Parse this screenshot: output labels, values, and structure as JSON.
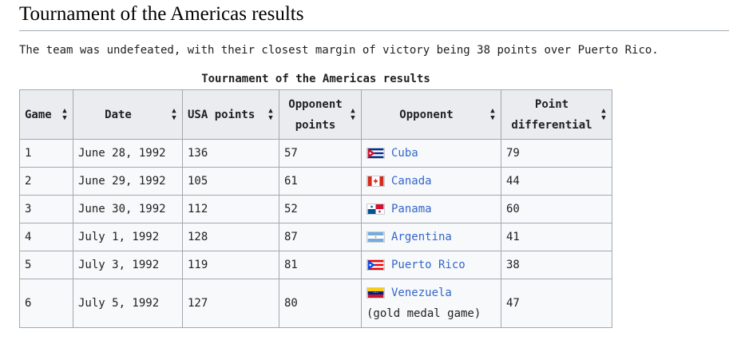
{
  "heading": "Tournament of the Americas results",
  "intro": "The team was undefeated, with their closest margin of victory being 38 points over Puerto Rico.",
  "table": {
    "caption": "Tournament of the Americas results",
    "headers": {
      "game": "Game",
      "date": "Date",
      "usa_points": "USA points",
      "opp_points_1": "Opponent",
      "opp_points_2": "points",
      "opponent": "Opponent",
      "diff_1": "Point",
      "diff_2": "differential"
    },
    "rows": [
      {
        "game": "1",
        "date": "June 28, 1992",
        "usa": "136",
        "opp_pts": "57",
        "flag": "cuba-flag",
        "opponent": "Cuba",
        "note": "",
        "diff": "79"
      },
      {
        "game": "2",
        "date": "June 29, 1992",
        "usa": "105",
        "opp_pts": "61",
        "flag": "canada-flag",
        "opponent": "Canada",
        "note": "",
        "diff": "44"
      },
      {
        "game": "3",
        "date": "June 30, 1992",
        "usa": "112",
        "opp_pts": "52",
        "flag": "panama-flag",
        "opponent": "Panama",
        "note": "",
        "diff": "60"
      },
      {
        "game": "4",
        "date": "July 1, 1992",
        "usa": "128",
        "opp_pts": "87",
        "flag": "argentina-flag",
        "opponent": "Argentina",
        "note": "",
        "diff": "41"
      },
      {
        "game": "5",
        "date": "July 3, 1992",
        "usa": "119",
        "opp_pts": "81",
        "flag": "puerto-rico-flag",
        "opponent": "Puerto Rico",
        "note": "",
        "diff": "38"
      },
      {
        "game": "6",
        "date": "July 5, 1992",
        "usa": "127",
        "opp_pts": "80",
        "flag": "venezuela-flag",
        "opponent": "Venezuela",
        "note": "(gold medal game)",
        "diff": "47"
      }
    ]
  }
}
